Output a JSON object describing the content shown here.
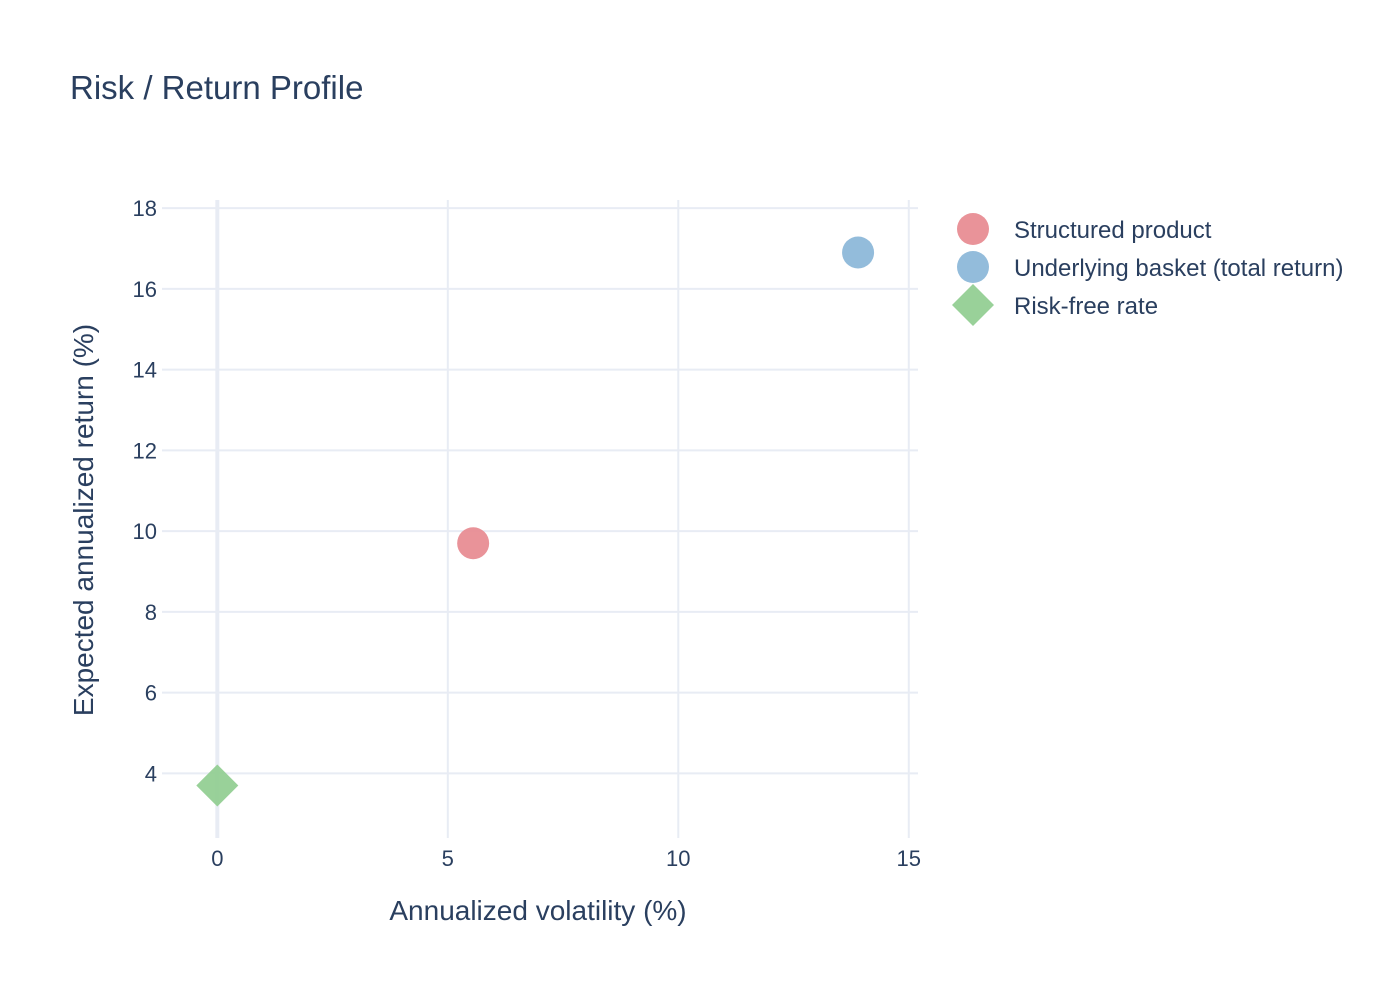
{
  "chart_data": {
    "type": "scatter",
    "title": "Risk / Return Profile",
    "xlabel": "Annualized volatility (%)",
    "ylabel": "Expected annualized return (%)",
    "xlim": [
      -1.2,
      15.2
    ],
    "ylim": [
      2.4,
      18.2
    ],
    "xticks": [
      0,
      5,
      10,
      15
    ],
    "yticks": [
      4,
      6,
      8,
      10,
      12,
      14,
      16,
      18
    ],
    "grid": true,
    "legend_position": "right",
    "series": [
      {
        "name": "Structured product",
        "marker": "circle",
        "color": "#e88d93",
        "points": [
          {
            "x": 5.55,
            "y": 9.7
          }
        ]
      },
      {
        "name": "Underlying basket (total return)",
        "marker": "circle",
        "color": "#8db8d9",
        "points": [
          {
            "x": 13.9,
            "y": 16.9
          }
        ]
      },
      {
        "name": "Risk-free rate",
        "marker": "diamond",
        "color": "#93cf93",
        "points": [
          {
            "x": 0,
            "y": 3.7
          }
        ]
      }
    ]
  }
}
